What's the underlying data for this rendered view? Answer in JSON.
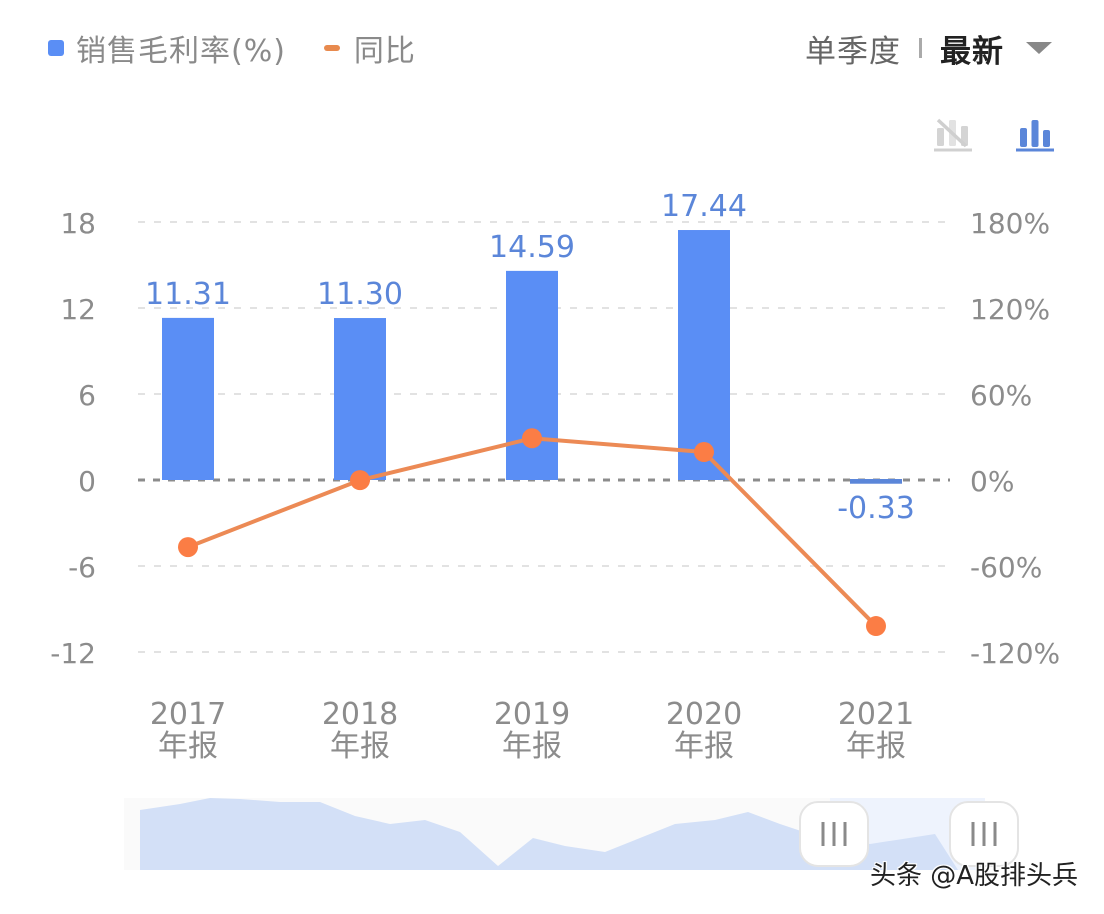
{
  "legend": {
    "bar_label": "销售毛利率(%)",
    "line_label": "同比",
    "bar_color": "#5a8ef5",
    "line_color": "#f08048"
  },
  "period_selector": {
    "option_quarter": "单季度",
    "option_latest": "最新",
    "selected": "最新"
  },
  "chart_toggles": {
    "hide_chart_icon": "bar-chart-hidden-icon",
    "show_chart_icon": "bar-chart-icon"
  },
  "chart_data": {
    "type": "bar",
    "title": "",
    "categories": [
      "2017\n年报",
      "2018\n年报",
      "2019\n年报",
      "2020\n年报",
      "2021\n年报"
    ],
    "category_year": [
      "2017",
      "2018",
      "2019",
      "2020",
      "2021"
    ],
    "category_suffix": "年报",
    "series": [
      {
        "name": "销售毛利率(%)",
        "type": "bar",
        "axis": "left",
        "color": "#5a8ef5",
        "values": [
          11.31,
          11.3,
          14.59,
          17.44,
          -0.33
        ],
        "labels": [
          "11.31",
          "11.30",
          "14.59",
          "17.44",
          "-0.33"
        ]
      },
      {
        "name": "同比",
        "type": "line",
        "axis": "right",
        "color": "#f08048",
        "unit": "%",
        "values": [
          -46.8,
          -0.09,
          29.1,
          19.5,
          -101.9
        ]
      }
    ],
    "left_axis": {
      "ticks": [
        18,
        12,
        6,
        0,
        -6,
        -12
      ],
      "tick_labels": [
        "18",
        "12",
        "6",
        "0",
        "-6",
        "-12"
      ],
      "ylim": [
        -12,
        18
      ]
    },
    "right_axis": {
      "ticks": [
        180,
        120,
        60,
        0,
        -60,
        -120
      ],
      "tick_labels": [
        "180%",
        "120%",
        "60%",
        "0%",
        "-60%",
        "-120%"
      ],
      "ylim": [
        -120,
        180
      ]
    },
    "grid": "dashed horizontal",
    "legend_position": "top-left",
    "xlabel": "",
    "ylabel": ""
  },
  "data_zoom": {
    "handle_left_glyph": "|||",
    "handle_right_glyph": "|||"
  },
  "watermark": "头条 @A股排头兵"
}
